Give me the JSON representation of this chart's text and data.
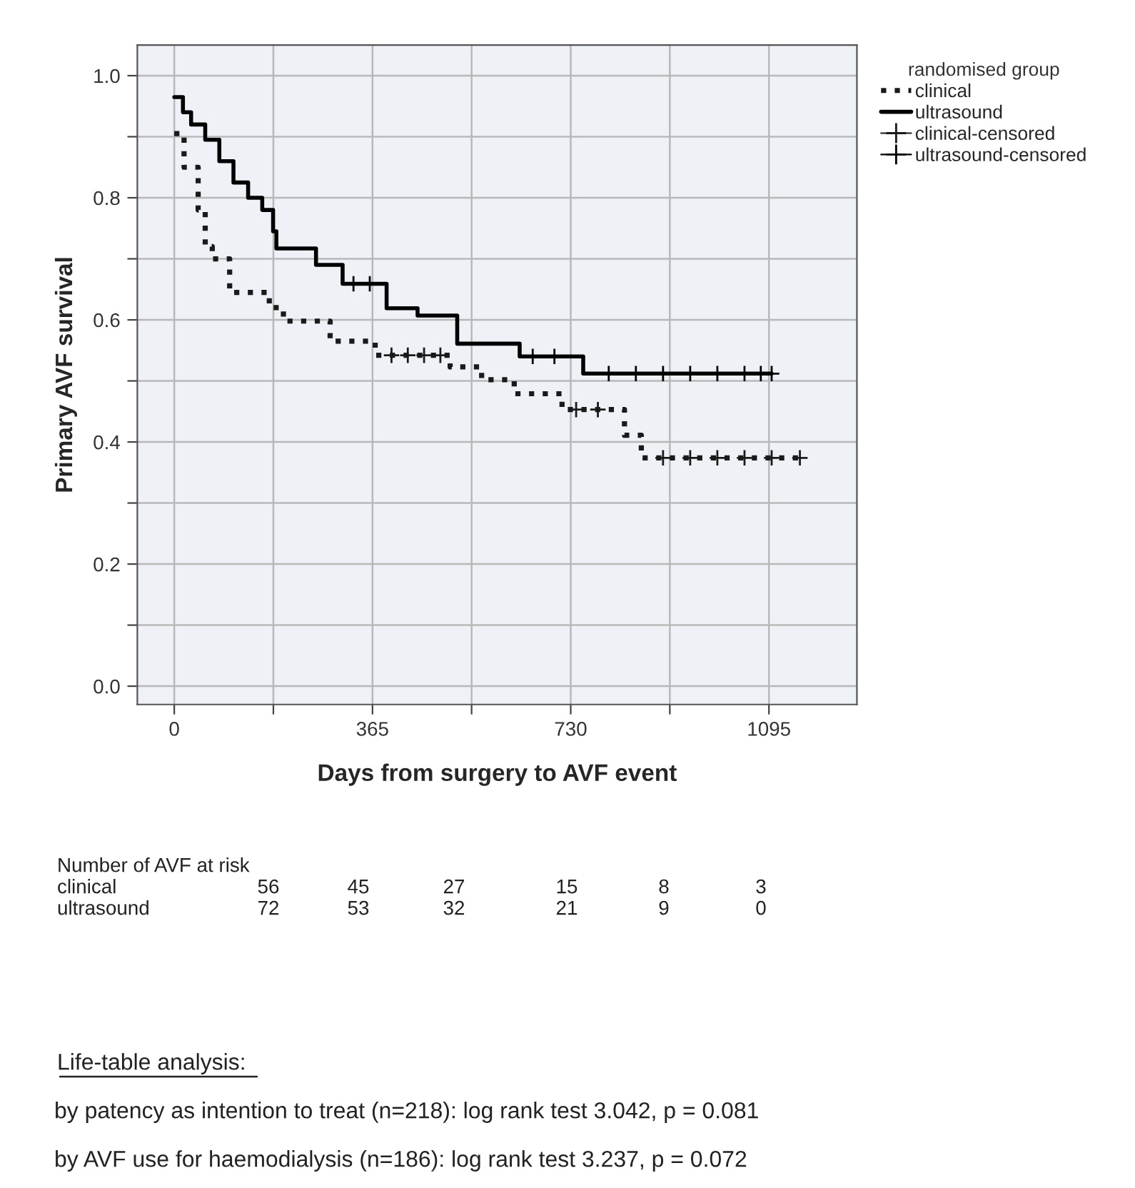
{
  "chart_data": {
    "type": "step",
    "xlabel": "Days from surgery to AVF event",
    "ylabel": "Primary AVF survival",
    "legend_title": "randomised group",
    "series": [
      {
        "name": "clinical",
        "color": "#1a1a1a",
        "line_style": "dotted",
        "marker": "none",
        "x": [
          0,
          18,
          44,
          57,
          70,
          102,
          175,
          201,
          287,
          370,
          508,
          566,
          626,
          714,
          829,
          860,
          1152
        ],
        "values": [
          0.905,
          0.85,
          0.78,
          0.72,
          0.7,
          0.645,
          0.62,
          0.598,
          0.565,
          0.542,
          0.523,
          0.502,
          0.479,
          0.453,
          0.411,
          0.374,
          0.374
        ]
      },
      {
        "name": "ultrasound",
        "color": "#000000",
        "line_style": "solid",
        "marker": "none",
        "x": [
          0,
          16,
          31,
          57,
          83,
          109,
          136,
          162,
          182,
          188,
          261,
          310,
          391,
          448,
          521,
          636,
          753,
          1100
        ],
        "values": [
          0.965,
          0.94,
          0.92,
          0.895,
          0.86,
          0.825,
          0.8,
          0.78,
          0.745,
          0.717,
          0.69,
          0.659,
          0.619,
          0.607,
          0.561,
          0.54,
          0.512,
          0.512
        ]
      },
      {
        "name": "clinical-censored",
        "type": "scatter",
        "color": "#1a1a1a",
        "marker": "cross",
        "x": [
          400,
          430,
          460,
          490,
          740,
          780,
          900,
          950,
          1000,
          1050,
          1100,
          1152
        ],
        "values": [
          0.542,
          0.542,
          0.542,
          0.542,
          0.453,
          0.453,
          0.374,
          0.374,
          0.374,
          0.374,
          0.374,
          0.374
        ]
      },
      {
        "name": "ultrasound-censored",
        "type": "scatter",
        "color": "#000000",
        "marker": "cross",
        "x": [
          330,
          360,
          660,
          700,
          800,
          850,
          900,
          950,
          1000,
          1050,
          1080,
          1100
        ],
        "values": [
          0.659,
          0.659,
          0.54,
          0.54,
          0.512,
          0.512,
          0.512,
          0.512,
          0.512,
          0.512,
          0.512,
          0.512
        ]
      }
    ],
    "xlim": [
      -68,
      1257
    ],
    "ylim": [
      -0.03,
      1.05
    ],
    "xticks": [
      0,
      {
        "value": 182.5,
        "label": null
      },
      365,
      {
        "value": 547.5,
        "label": null
      },
      730,
      {
        "value": 912.5,
        "label": null
      },
      1095
    ],
    "yticks": [
      {
        "value": 0.0,
        "label": "0.0"
      },
      {
        "value": 0.1,
        "label": null
      },
      0.2,
      {
        "value": 0.3,
        "label": null
      },
      0.4,
      {
        "value": 0.5,
        "label": null
      },
      0.6,
      {
        "value": 0.7,
        "label": null
      },
      0.8,
      {
        "value": 0.9,
        "label": null
      },
      {
        "value": 1.0,
        "label": "1.0"
      }
    ],
    "grid": true,
    "legend": "top right",
    "annotations": [
      "Number of AVF at risk",
      "clinical 56 45 27 15 8 3",
      "ultrasound 72 53 32 21 9 0",
      "Life-table analysis:",
      "by patency as intention to treat (n=218): log rank test 3.042, p = 0.081",
      "by AVF use for haemodialysis (n=186): log rank test 3.237, p = 0.072"
    ]
  }
}
